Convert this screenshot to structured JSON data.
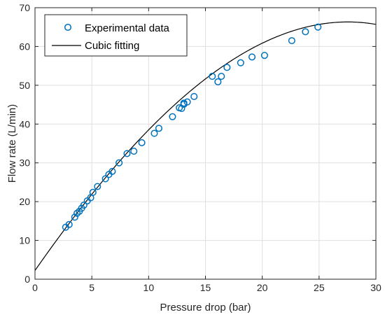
{
  "chart_data": {
    "type": "scatter",
    "title": "",
    "xlabel": "Pressure drop (bar)",
    "ylabel": "Flow rate (L/min)",
    "xlim": [
      0,
      30
    ],
    "ylim": [
      0,
      70
    ],
    "xticks": [
      0,
      5,
      10,
      15,
      20,
      25,
      30
    ],
    "yticks": [
      0,
      10,
      20,
      30,
      40,
      50,
      60,
      70
    ],
    "grid": true,
    "legend_position": "top-left",
    "colors": {
      "scatter": "#0072BD",
      "fit": "#000000",
      "grid": "#dfdfdf",
      "axis": "#262626"
    },
    "series": [
      {
        "name": "Experimental data",
        "kind": "scatter",
        "points": [
          [
            2.7,
            13.4
          ],
          [
            3.0,
            14.1
          ],
          [
            3.5,
            16.0
          ],
          [
            3.7,
            17.0
          ],
          [
            3.9,
            17.5
          ],
          [
            4.1,
            18.3
          ],
          [
            4.3,
            19.1
          ],
          [
            4.6,
            20.2
          ],
          [
            4.9,
            21.0
          ],
          [
            5.1,
            22.4
          ],
          [
            5.5,
            23.9
          ],
          [
            6.2,
            25.9
          ],
          [
            6.5,
            27.0
          ],
          [
            6.8,
            27.8
          ],
          [
            7.4,
            30.0
          ],
          [
            8.1,
            32.4
          ],
          [
            8.7,
            33.0
          ],
          [
            9.4,
            35.2
          ],
          [
            10.5,
            37.6
          ],
          [
            10.9,
            38.9
          ],
          [
            12.1,
            41.9
          ],
          [
            12.7,
            44.2
          ],
          [
            12.9,
            44.0
          ],
          [
            13.1,
            45.1
          ],
          [
            13.1,
            45.4
          ],
          [
            13.4,
            45.7
          ],
          [
            14.0,
            47.1
          ],
          [
            15.6,
            52.3
          ],
          [
            16.1,
            50.9
          ],
          [
            16.4,
            52.3
          ],
          [
            16.9,
            54.6
          ],
          [
            18.1,
            55.8
          ],
          [
            19.1,
            57.3
          ],
          [
            20.2,
            57.7
          ],
          [
            22.6,
            61.5
          ],
          [
            23.8,
            63.8
          ],
          [
            24.9,
            65.0
          ]
        ]
      },
      {
        "name": "Cubic fitting",
        "kind": "line",
        "coefficients": [
          2.25,
          4.2,
          -0.0515,
          -0.0006
        ]
      }
    ]
  }
}
